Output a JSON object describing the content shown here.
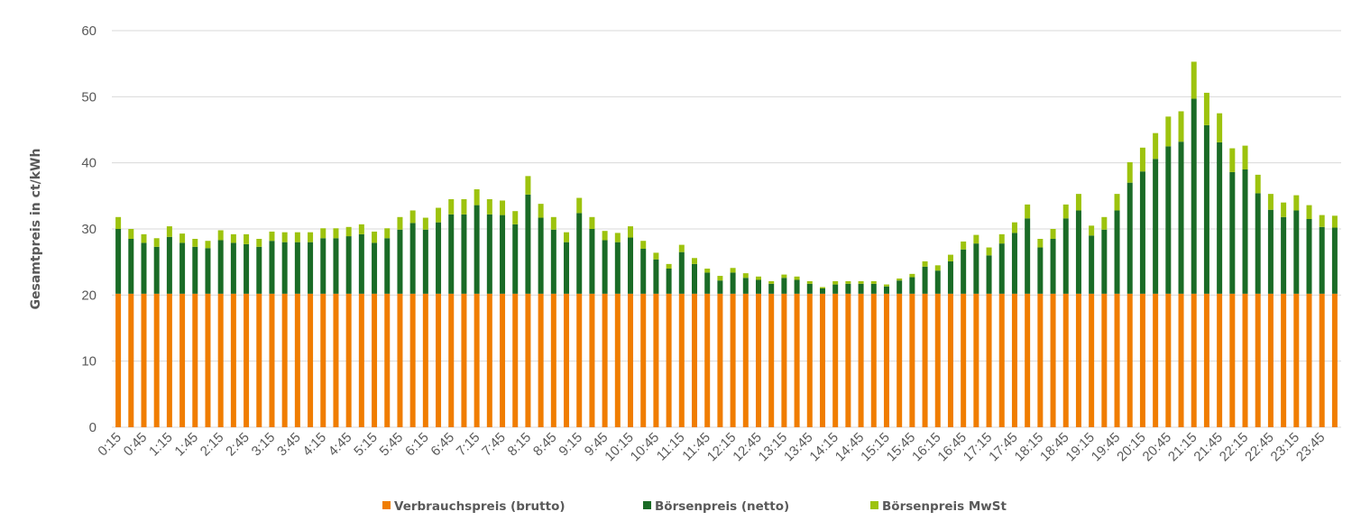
{
  "chart_data": {
    "type": "bar",
    "stacked": true,
    "title": "",
    "xlabel": "",
    "ylabel": "Gesamtpreis in ct/kWh",
    "ylim": [
      0,
      60
    ],
    "y_ticks": [
      0,
      10,
      20,
      30,
      40,
      50,
      60
    ],
    "grid": true,
    "legend_position": "bottom",
    "x_tick_labels": [
      "0:15",
      "0:45",
      "1:15",
      "1:45",
      "2:15",
      "2:45",
      "3:15",
      "3:45",
      "4:15",
      "4:45",
      "5:15",
      "5:45",
      "6:15",
      "6:45",
      "7:15",
      "7:45",
      "8:15",
      "8:45",
      "9:15",
      "9:45",
      "10:15",
      "10:45",
      "11:15",
      "11:45",
      "12:15",
      "12:45",
      "13:15",
      "13:45",
      "14:15",
      "14:45",
      "15:15",
      "15:45",
      "16:15",
      "16:45",
      "17:15",
      "17:45",
      "18:15",
      "18:45",
      "19:15",
      "19:45",
      "20:15",
      "20:45",
      "21:15",
      "21:45",
      "22:15",
      "22:45",
      "23:15",
      "23:45"
    ],
    "bars_per_tick_label": 2,
    "series": [
      {
        "name": "Verbrauchspreis (brutto)",
        "color": "#F07D00",
        "values": [
          20.2,
          20.2,
          20.2,
          20.2,
          20.2,
          20.2,
          20.2,
          20.2,
          20.2,
          20.2,
          20.2,
          20.2,
          20.2,
          20.2,
          20.2,
          20.2,
          20.2,
          20.2,
          20.2,
          20.2,
          20.2,
          20.2,
          20.2,
          20.2,
          20.2,
          20.2,
          20.2,
          20.2,
          20.2,
          20.2,
          20.2,
          20.2,
          20.2,
          20.2,
          20.2,
          20.2,
          20.2,
          20.2,
          20.2,
          20.2,
          20.2,
          20.2,
          20.2,
          20.2,
          20.2,
          20.2,
          20.2,
          20.2,
          20.2,
          20.2,
          20.2,
          20.2,
          20.2,
          20.2,
          20.2,
          20.2,
          20.2,
          20.2,
          20.2,
          20.2,
          20.2,
          20.2,
          20.2,
          20.2,
          20.2,
          20.2,
          20.2,
          20.2,
          20.2,
          20.2,
          20.2,
          20.2,
          20.2,
          20.2,
          20.2,
          20.2,
          20.2,
          20.2,
          20.2,
          20.2,
          20.2,
          20.2,
          20.2,
          20.2,
          20.2,
          20.2,
          20.2,
          20.2,
          20.2,
          20.2,
          20.2,
          20.2,
          20.2,
          20.2,
          20.2,
          20.2
        ]
      },
      {
        "name": "Börsenpreis (netto)",
        "color": "#1A6B26",
        "values": [
          9.8,
          8.3,
          7.7,
          7.1,
          8.6,
          7.7,
          7.1,
          6.9,
          8.1,
          7.7,
          7.5,
          7.1,
          8.0,
          7.8,
          7.8,
          7.8,
          8.4,
          8.4,
          8.7,
          9.0,
          7.7,
          8.4,
          9.7,
          10.7,
          9.7,
          10.8,
          12.0,
          12.0,
          13.4,
          12.0,
          11.9,
          10.5,
          15.0,
          11.5,
          9.7,
          7.8,
          12.2,
          9.8,
          8.1,
          7.8,
          8.5,
          6.8,
          5.2,
          3.8,
          6.3,
          4.5,
          3.2,
          2.0,
          3.2,
          2.4,
          2.1,
          1.5,
          2.4,
          2.1,
          1.5,
          0.8,
          1.4,
          1.5,
          1.5,
          1.5,
          1.1,
          2.0,
          2.5,
          4.1,
          3.5,
          4.9,
          6.7,
          7.6,
          5.8,
          7.6,
          9.2,
          11.4,
          7.0,
          8.3,
          11.4,
          12.6,
          8.8,
          9.7,
          12.6,
          16.8,
          18.5,
          20.4,
          22.3,
          23.0,
          29.5,
          25.5,
          22.9,
          18.4,
          18.8,
          15.2,
          12.7,
          11.6,
          12.6,
          11.3,
          10.1,
          10.0
        ]
      },
      {
        "name": "Börsenpreis MwSt",
        "color": "#9DC30E",
        "values": [
          1.8,
          1.5,
          1.3,
          1.3,
          1.6,
          1.4,
          1.2,
          1.1,
          1.5,
          1.3,
          1.5,
          1.2,
          1.4,
          1.5,
          1.5,
          1.5,
          1.5,
          1.5,
          1.4,
          1.5,
          1.7,
          1.5,
          1.9,
          1.9,
          1.8,
          2.2,
          2.3,
          2.3,
          2.4,
          2.3,
          2.2,
          2.0,
          2.8,
          2.1,
          1.9,
          1.5,
          2.3,
          1.8,
          1.4,
          1.4,
          1.7,
          1.2,
          1.0,
          0.7,
          1.1,
          0.9,
          0.6,
          0.7,
          0.7,
          0.7,
          0.5,
          0.4,
          0.5,
          0.5,
          0.4,
          0.2,
          0.5,
          0.4,
          0.4,
          0.4,
          0.3,
          0.3,
          0.5,
          0.8,
          0.8,
          1.0,
          1.2,
          1.3,
          1.2,
          1.4,
          1.6,
          2.1,
          1.3,
          1.5,
          2.1,
          2.5,
          1.5,
          1.9,
          2.5,
          3.1,
          3.6,
          3.9,
          4.5,
          4.6,
          5.6,
          4.9,
          4.4,
          3.6,
          3.6,
          2.8,
          2.4,
          2.2,
          2.3,
          2.1,
          1.8,
          1.8
        ]
      }
    ]
  }
}
